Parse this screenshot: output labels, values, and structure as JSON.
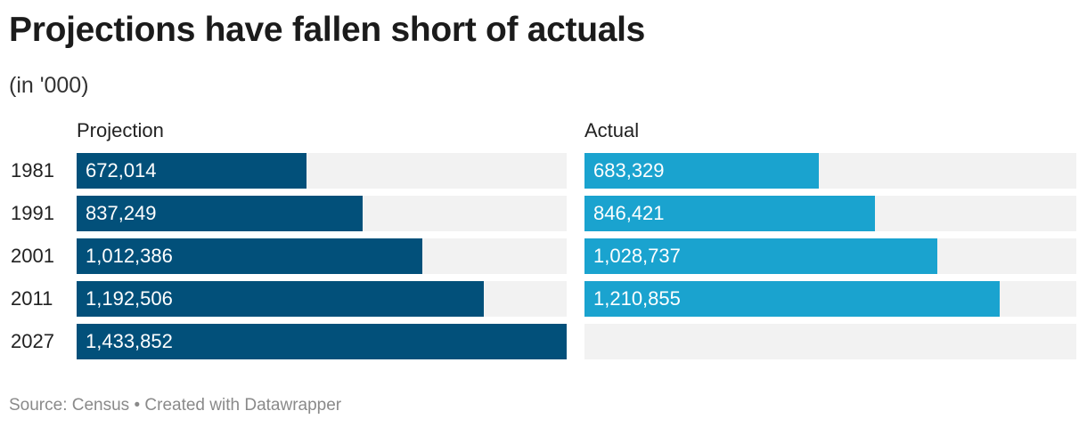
{
  "title": "Projections have fallen short of actuals",
  "subtitle": "(in '000)",
  "footer": {
    "source_label": "Source: Census",
    "separator": "•",
    "credit": "Created with Datawrapper"
  },
  "colors": {
    "projection": "#02507a",
    "actual": "#1aa3cf",
    "track": "#f2f2f2"
  },
  "chart_data": {
    "type": "bar",
    "orientation": "horizontal",
    "title": "Projections have fallen short of actuals",
    "subtitle": "(in '000)",
    "categories": [
      "1981",
      "1991",
      "2001",
      "2011",
      "2027"
    ],
    "series": [
      {
        "name": "Projection",
        "values": [
          672014,
          837249,
          1012386,
          1192506,
          1433852
        ],
        "labels": [
          "672,014",
          "837,249",
          "1,012,386",
          "1,192,506",
          "1,433,852"
        ]
      },
      {
        "name": "Actual",
        "values": [
          683329,
          846421,
          1028737,
          1210855,
          null
        ],
        "labels": [
          "683,329",
          "846,421",
          "1,028,737",
          "1,210,855",
          ""
        ]
      }
    ],
    "xlim": [
      0,
      1433852
    ],
    "legend": "panel-headers",
    "grid": false
  }
}
